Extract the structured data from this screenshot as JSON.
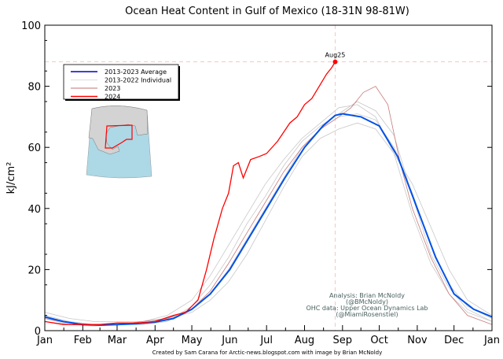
{
  "chart_data": {
    "type": "line",
    "title": "Ocean Heat Content in Gulf of Mexico (18-31N 98-81W)",
    "xlabel": "",
    "ylabel": "kJ/cm²",
    "ylim": [
      0,
      100
    ],
    "xlim_days": [
      0,
      365
    ],
    "yticks": [
      0,
      20,
      40,
      60,
      80,
      100
    ],
    "xticks": [
      {
        "day": 0,
        "label": "Jan"
      },
      {
        "day": 31,
        "label": "Feb"
      },
      {
        "day": 59,
        "label": "Mar"
      },
      {
        "day": 90,
        "label": "Apr"
      },
      {
        "day": 120,
        "label": "May"
      },
      {
        "day": 151,
        "label": "Jun"
      },
      {
        "day": 181,
        "label": "Jul"
      },
      {
        "day": 212,
        "label": "Aug"
      },
      {
        "day": 243,
        "label": "Sep"
      },
      {
        "day": 273,
        "label": "Oct"
      },
      {
        "day": 304,
        "label": "Nov"
      },
      {
        "day": 334,
        "label": "Dec"
      },
      {
        "day": 365,
        "label": "Jan"
      }
    ],
    "legend": {
      "placement": "upper-left",
      "entries": [
        "2013-2023 Average",
        "2013-2022 Individual",
        "2023",
        "2024"
      ]
    },
    "series": [
      {
        "name": "2013-2022 Individual",
        "color": "#c8c8c8",
        "x": [
          0,
          20,
          40,
          60,
          80,
          100,
          120,
          135,
          150,
          165,
          180,
          195,
          210,
          225,
          240,
          255,
          270,
          285,
          300,
          315,
          330,
          345,
          365
        ],
        "values": [
          5,
          3,
          2,
          2,
          2.5,
          4,
          7,
          12,
          20,
          30,
          40,
          50,
          60,
          66,
          70,
          71,
          69,
          60,
          45,
          28,
          15,
          8,
          4
        ]
      },
      {
        "name": "2013-2022 Individual",
        "color": "#c8c8c8",
        "x": [
          0,
          20,
          40,
          60,
          80,
          100,
          120,
          135,
          150,
          165,
          180,
          195,
          210,
          225,
          240,
          255,
          270,
          285,
          300,
          315,
          330,
          345,
          365
        ],
        "values": [
          3,
          2,
          1.5,
          2,
          3,
          5,
          10,
          18,
          28,
          38,
          48,
          56,
          63,
          68,
          73,
          74,
          70,
          58,
          38,
          22,
          12,
          6,
          3
        ]
      },
      {
        "name": "2013-2022 Individual",
        "color": "#c8c8c8",
        "x": [
          0,
          20,
          40,
          60,
          80,
          100,
          120,
          135,
          150,
          165,
          180,
          195,
          210,
          225,
          240,
          255,
          270,
          285,
          300,
          315,
          330,
          345,
          365
        ],
        "values": [
          6,
          4,
          3,
          3,
          3,
          4,
          6,
          10,
          16,
          25,
          36,
          47,
          57,
          63,
          66,
          68,
          66,
          58,
          48,
          34,
          20,
          10,
          5
        ]
      },
      {
        "name": "2013-2022 Individual",
        "color": "#c8c8c8",
        "x": [
          0,
          20,
          40,
          60,
          80,
          100,
          120,
          135,
          150,
          165,
          180,
          195,
          210,
          225,
          240,
          255,
          270,
          285,
          300,
          315,
          330,
          345,
          365
        ],
        "values": [
          4,
          2,
          2,
          2,
          2,
          3,
          8,
          15,
          24,
          35,
          44,
          54,
          62,
          67,
          71,
          75,
          72,
          64,
          44,
          25,
          14,
          7,
          3
        ]
      },
      {
        "name": "2023",
        "color": "#c87a7a",
        "x": [
          0,
          20,
          40,
          60,
          80,
          100,
          120,
          135,
          150,
          165,
          180,
          195,
          210,
          225,
          240,
          250,
          260,
          270,
          280,
          290,
          300,
          315,
          330,
          345,
          365
        ],
        "values": [
          4,
          2.5,
          2,
          2,
          3,
          4,
          7,
          13,
          22,
          32,
          42,
          52,
          60,
          66,
          70,
          73,
          78,
          80,
          74,
          55,
          40,
          24,
          12,
          5,
          2
        ]
      },
      {
        "name": "2013-2023 Average",
        "color": "#0050e6",
        "x": [
          0,
          15,
          31,
          45,
          59,
          75,
          90,
          105,
          120,
          135,
          151,
          166,
          181,
          196,
          212,
          227,
          237,
          243,
          258,
          273,
          288,
          304,
          319,
          334,
          350,
          365
        ],
        "values": [
          4.5,
          3,
          2,
          1.8,
          2,
          2.3,
          2.8,
          4,
          7,
          12,
          20,
          30,
          40,
          50,
          60,
          67,
          70.5,
          71,
          70,
          67,
          57,
          40,
          24,
          12,
          7,
          4.5
        ]
      },
      {
        "name": "2024",
        "color": "#ff0000",
        "x": [
          0,
          15,
          31,
          45,
          59,
          75,
          90,
          105,
          115,
          125,
          132,
          138,
          145,
          150,
          154,
          158,
          162,
          168,
          175,
          181,
          190,
          200,
          206,
          212,
          218,
          224,
          230,
          234,
          237
        ],
        "values": [
          3,
          2,
          2,
          2,
          2.5,
          2.5,
          3,
          5,
          6,
          10,
          20,
          30,
          40,
          45,
          54,
          55,
          50,
          56,
          57,
          58,
          62,
          68,
          70,
          74,
          76,
          80,
          84,
          86,
          88
        ]
      }
    ],
    "annotations": [
      {
        "text": "Aug25",
        "day": 237,
        "value": 88
      },
      {
        "text": "Analysis: Brian McNoldy"
      },
      {
        "text": "(@BMcNoldy)"
      },
      {
        "text": "OHC data: Upper Ocean Dynamics Lab"
      },
      {
        "text": "(@MiamiRosenstiel)"
      }
    ]
  },
  "footer": "Created by Sam Carana for Arctic-news.blogspot.com with image by Brian McNoldy"
}
